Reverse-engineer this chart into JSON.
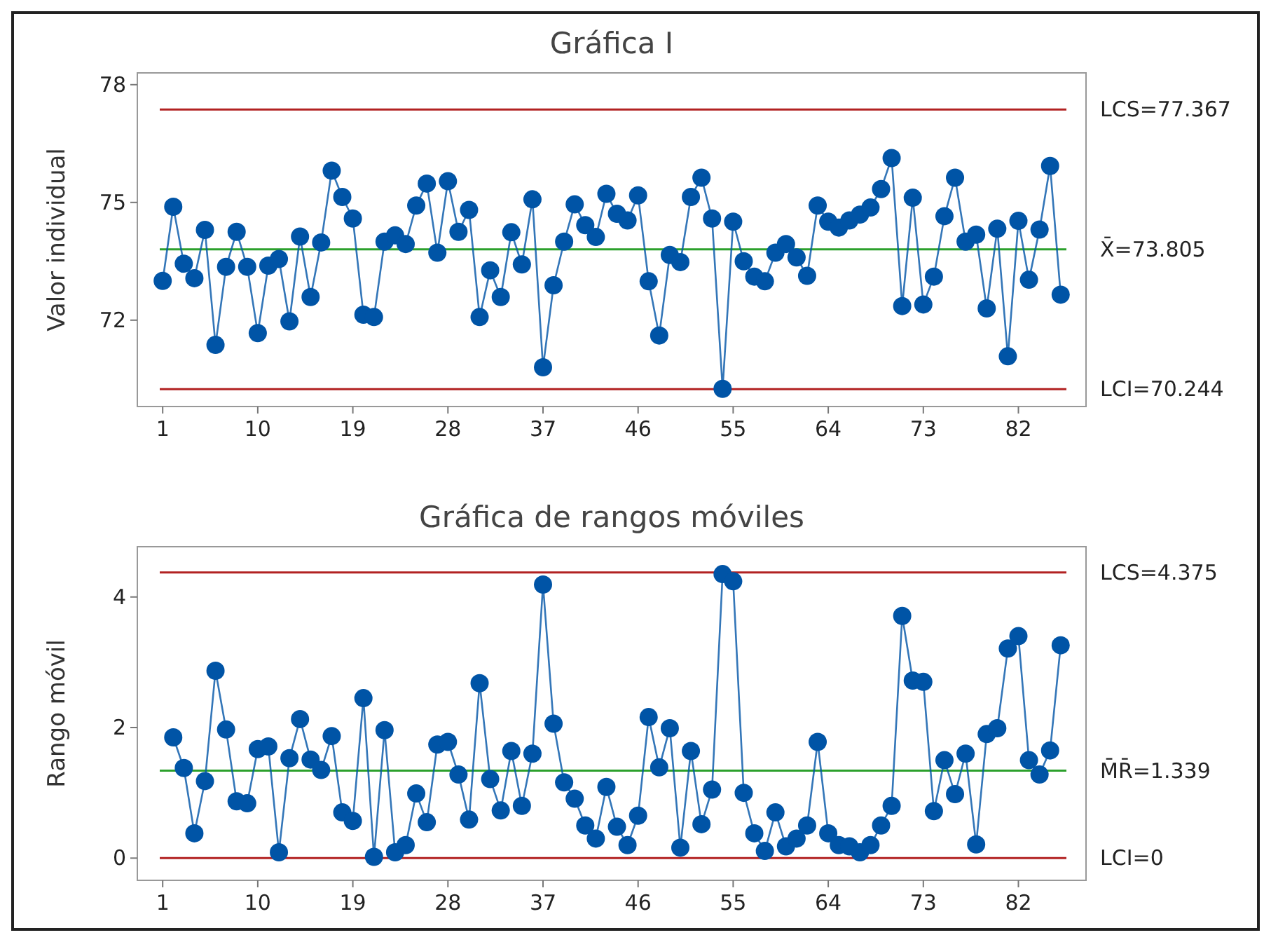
{
  "chart_data": [
    {
      "type": "line",
      "title": "Gráfica I",
      "ylabel": "Valor individual",
      "xlim": [
        -1.4,
        88.4
      ],
      "xticks": [
        1,
        10,
        19,
        28,
        37,
        46,
        55,
        64,
        73,
        82
      ],
      "ylim": [
        69.8,
        78.3
      ],
      "yticks": [
        72,
        75,
        78
      ],
      "grid": false,
      "marker": "circle",
      "line_style": "solid",
      "series": [
        {
          "color": "#0054a6",
          "x": [
            1,
            2,
            3,
            4,
            5,
            6,
            7,
            8,
            9,
            10,
            11,
            12,
            13,
            14,
            15,
            16,
            17,
            18,
            19,
            20,
            21,
            22,
            23,
            24,
            25,
            26,
            27,
            28,
            29,
            30,
            31,
            32,
            33,
            34,
            35,
            36,
            37,
            38,
            39,
            40,
            41,
            42,
            43,
            44,
            45,
            46,
            47,
            48,
            49,
            50,
            51,
            52,
            53,
            54,
            55,
            56,
            57,
            58,
            59,
            60,
            61,
            62,
            63,
            64,
            65,
            66,
            67,
            68,
            69,
            70,
            71,
            72,
            73,
            74,
            75,
            76,
            77,
            78,
            79,
            80,
            81,
            82,
            83,
            84,
            85,
            86
          ],
          "values": [
            73.0,
            74.89,
            73.44,
            73.07,
            74.3,
            71.37,
            73.36,
            74.25,
            73.36,
            71.67,
            73.39,
            73.56,
            71.97,
            74.13,
            72.59,
            73.98,
            75.81,
            75.14,
            74.59,
            72.14,
            72.08,
            74.0,
            74.16,
            73.94,
            74.92,
            75.48,
            73.72,
            75.54,
            74.25,
            74.81,
            72.08,
            73.27,
            72.59,
            74.24,
            73.42,
            75.08,
            70.8,
            72.89,
            74.0,
            74.95,
            74.42,
            74.12,
            75.22,
            74.71,
            74.54,
            75.18,
            72.99,
            71.61,
            73.66,
            73.48,
            75.14,
            75.63,
            74.59,
            70.25,
            74.51,
            73.5,
            73.11,
            72.99,
            73.72,
            73.94,
            73.6,
            73.13,
            74.92,
            74.51,
            74.36,
            74.54,
            74.69,
            74.87,
            75.34,
            76.13,
            72.36,
            75.12,
            72.4,
            73.11,
            74.65,
            75.63,
            74.0,
            74.18,
            72.3,
            74.33,
            71.08,
            74.53,
            73.03,
            74.31,
            75.93,
            72.65
          ]
        }
      ],
      "ref_lines": [
        {
          "axis": "y",
          "value": 77.367,
          "label": "LCS=77.367",
          "color": "#b22222"
        },
        {
          "axis": "y",
          "value": 73.805,
          "label": "X̄=73.805",
          "color": "#2ca02c"
        },
        {
          "axis": "y",
          "value": 70.244,
          "label": "LCI=70.244",
          "color": "#b22222"
        }
      ]
    },
    {
      "type": "line",
      "title": "Gráfica de rangos móviles",
      "ylabel": "Rango móvil",
      "xlim": [
        -1.4,
        88.4
      ],
      "xticks": [
        1,
        10,
        19,
        28,
        37,
        46,
        55,
        64,
        73,
        82
      ],
      "ylim": [
        -0.34,
        4.77
      ],
      "yticks": [
        0,
        2,
        4
      ],
      "grid": false,
      "marker": "circle",
      "line_style": "solid",
      "series": [
        {
          "color": "#0054a6",
          "x": [
            2,
            3,
            4,
            5,
            6,
            7,
            8,
            9,
            10,
            11,
            12,
            13,
            14,
            15,
            16,
            17,
            18,
            19,
            20,
            21,
            22,
            23,
            24,
            25,
            26,
            27,
            28,
            29,
            30,
            31,
            32,
            33,
            34,
            35,
            36,
            37,
            38,
            39,
            40,
            41,
            42,
            43,
            44,
            45,
            46,
            47,
            48,
            49,
            50,
            51,
            52,
            53,
            54,
            55,
            56,
            57,
            58,
            59,
            60,
            61,
            62,
            63,
            64,
            65,
            66,
            67,
            68,
            69,
            70,
            71,
            72,
            73,
            74,
            75,
            76,
            77,
            78,
            79,
            80,
            81,
            82,
            83,
            84,
            85,
            86
          ],
          "values": [
            1.85,
            1.38,
            0.38,
            1.18,
            2.87,
            1.97,
            0.87,
            0.84,
            1.67,
            1.71,
            0.09,
            1.53,
            2.13,
            1.51,
            1.35,
            1.87,
            0.7,
            0.57,
            2.45,
            0.02,
            1.96,
            0.09,
            0.2,
            0.99,
            0.55,
            1.74,
            1.78,
            1.28,
            0.59,
            2.68,
            1.21,
            0.73,
            1.64,
            0.8,
            1.6,
            4.19,
            2.06,
            1.16,
            0.91,
            0.5,
            0.3,
            1.09,
            0.48,
            0.2,
            0.65,
            2.16,
            1.39,
            1.99,
            0.16,
            1.64,
            0.52,
            1.05,
            4.35,
            4.24,
            1.0,
            0.38,
            0.11,
            0.7,
            0.18,
            0.3,
            0.5,
            1.78,
            0.38,
            0.2,
            0.18,
            0.09,
            0.2,
            0.5,
            0.8,
            3.71,
            2.72,
            2.7,
            0.72,
            1.5,
            0.98,
            1.6,
            0.21,
            1.9,
            1.99,
            3.21,
            3.4,
            1.5,
            1.28,
            1.65,
            3.26
          ]
        }
      ],
      "ref_lines": [
        {
          "axis": "y",
          "value": 4.375,
          "label": "LCS=4.375",
          "color": "#b22222"
        },
        {
          "axis": "y",
          "value": 1.339,
          "label": "M̄R̄=1.339",
          "color": "#2ca02c"
        },
        {
          "axis": "y",
          "value": 0,
          "label": "LCI=0",
          "color": "#b22222"
        }
      ]
    }
  ]
}
